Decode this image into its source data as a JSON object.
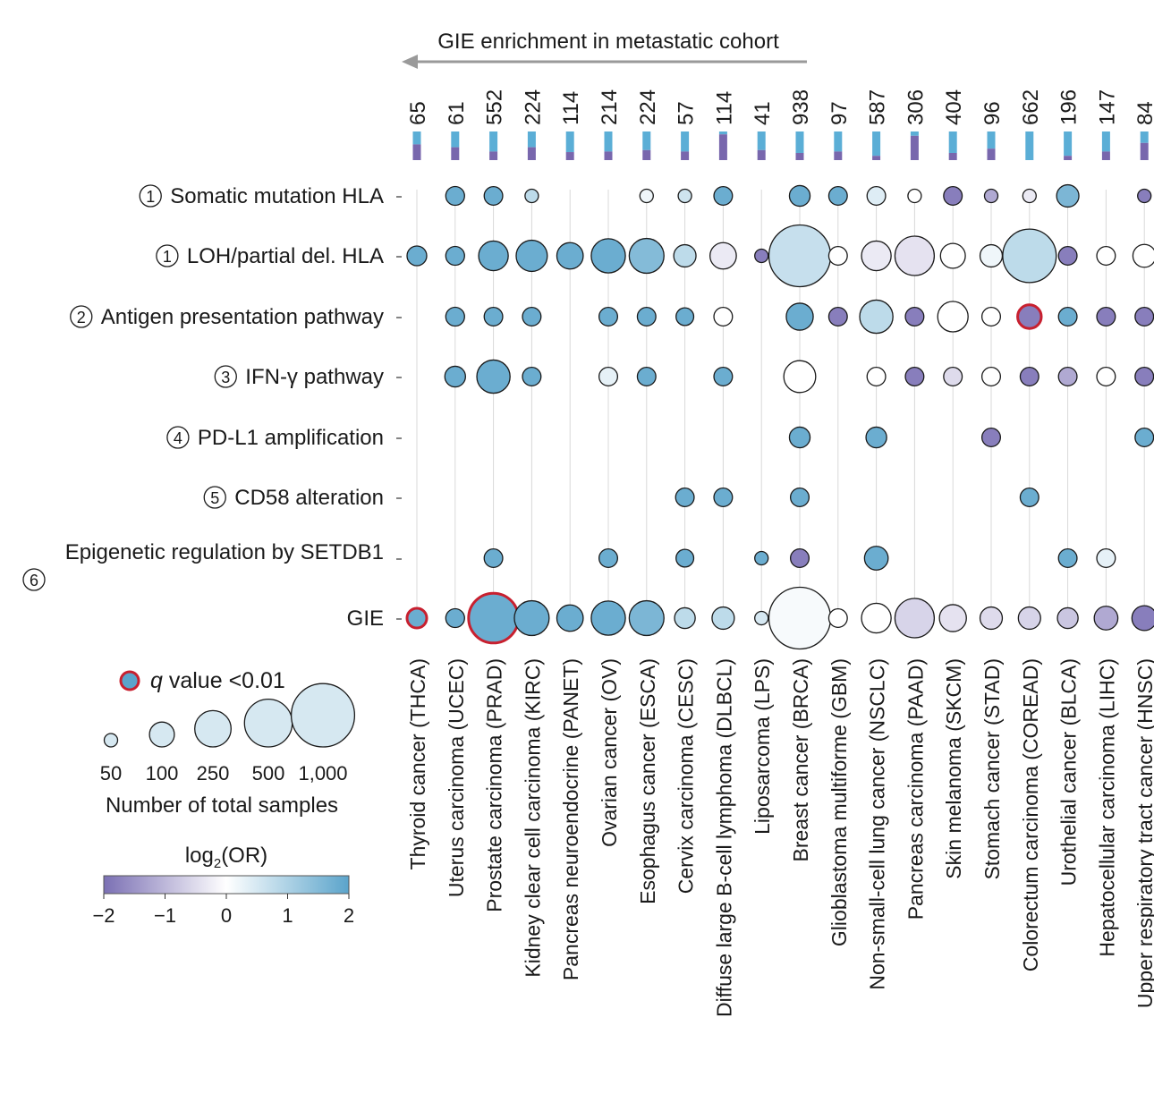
{
  "chart_data": {
    "type": "bubble-matrix",
    "arrow_label": "GIE enrichment in metastatic cohort",
    "cancers": [
      "Thyroid cancer (THCA)",
      "Uterus carcinoma (UCEC)",
      "Prostate carcinoma (PRAD)",
      "Kidney clear cell carcinoma (KIRC)",
      "Pancreas neuroendocrine (PANET)",
      "Ovarian cancer (OV)",
      "Esophagus cancer (ESCA)",
      "Cervix carcinoma (CESC)",
      "Diffuse large B-cell lymphoma (DLBCL)",
      "Liposarcoma (LPS)",
      "Breast cancer (BRCA)",
      "Glioblastoma multiforme (GBM)",
      "Non-small-cell lung cancer (NSCLC)",
      "Pancreas carcinoma (PAAD)",
      "Skin melanoma (SKCM)",
      "Stomach cancer (STAD)",
      "Colorectum carcinoma (COREAD)",
      "Urothelial cancer (BLCA)",
      "Hepatocellular carcinoma (LIHC)",
      "Upper respiratory tract cancer (HNSC)"
    ],
    "sample_counts": [
      "65",
      "61",
      "552",
      "224",
      "114",
      "214",
      "224",
      "57",
      "114",
      "41",
      "938",
      "97",
      "587",
      "306",
      "404",
      "96",
      "662",
      "196",
      "147",
      "84"
    ],
    "metastatic_fraction": [
      0.55,
      0.45,
      0.3,
      0.45,
      0.28,
      0.3,
      0.35,
      0.3,
      0.9,
      0.35,
      0.25,
      0.3,
      0.15,
      0.85,
      0.25,
      0.4,
      0.0,
      0.15,
      0.3,
      0.6
    ],
    "rows": [
      {
        "num": "1",
        "label": "Somatic mutation HLA"
      },
      {
        "num": "1",
        "label": "LOH/partial del. HLA"
      },
      {
        "num": "2",
        "label": "Antigen presentation pathway"
      },
      {
        "num": "3",
        "label": "IFN-γ pathway"
      },
      {
        "num": "4",
        "label": "PD-L1 amplification"
      },
      {
        "num": "5",
        "label": "CD58 alteration"
      },
      {
        "num": "6",
        "label": "Epigenetic regulation by SETDB1"
      },
      {
        "num": "",
        "label": "GIE"
      }
    ],
    "points": [
      {
        "row": 0,
        "col": 1,
        "n": 61,
        "log2or": 1.8
      },
      {
        "row": 0,
        "col": 2,
        "n": 60,
        "log2or": 1.8
      },
      {
        "row": 0,
        "col": 3,
        "n": 50,
        "log2or": 0.8
      },
      {
        "row": 0,
        "col": 6,
        "n": 50,
        "log2or": 0.2
      },
      {
        "row": 0,
        "col": 7,
        "n": 50,
        "log2or": 0.6
      },
      {
        "row": 0,
        "col": 8,
        "n": 60,
        "log2or": 1.8
      },
      {
        "row": 0,
        "col": 10,
        "n": 70,
        "log2or": 1.8
      },
      {
        "row": 0,
        "col": 11,
        "n": 60,
        "log2or": 1.8
      },
      {
        "row": 0,
        "col": 12,
        "n": 60,
        "log2or": 0.4
      },
      {
        "row": 0,
        "col": 13,
        "n": 50,
        "log2or": 0.0
      },
      {
        "row": 0,
        "col": 14,
        "n": 60,
        "log2or": -1.8
      },
      {
        "row": 0,
        "col": 15,
        "n": 50,
        "log2or": -1.2
      },
      {
        "row": 0,
        "col": 16,
        "n": 50,
        "log2or": -0.3
      },
      {
        "row": 0,
        "col": 17,
        "n": 80,
        "log2or": 1.6
      },
      {
        "row": 0,
        "col": 19,
        "n": 50,
        "log2or": -1.8
      },
      {
        "row": 1,
        "col": 0,
        "n": 65,
        "log2or": 1.8
      },
      {
        "row": 1,
        "col": 1,
        "n": 61,
        "log2or": 1.8
      },
      {
        "row": 1,
        "col": 2,
        "n": 150,
        "log2or": 1.8
      },
      {
        "row": 1,
        "col": 3,
        "n": 170,
        "log2or": 1.8
      },
      {
        "row": 1,
        "col": 4,
        "n": 114,
        "log2or": 1.8
      },
      {
        "row": 1,
        "col": 5,
        "n": 214,
        "log2or": 1.8
      },
      {
        "row": 1,
        "col": 6,
        "n": 224,
        "log2or": 1.5
      },
      {
        "row": 1,
        "col": 7,
        "n": 80,
        "log2or": 0.8
      },
      {
        "row": 1,
        "col": 8,
        "n": 114,
        "log2or": -0.3
      },
      {
        "row": 1,
        "col": 9,
        "n": 41,
        "log2or": -1.8
      },
      {
        "row": 1,
        "col": 10,
        "n": 938,
        "log2or": 0.7
      },
      {
        "row": 1,
        "col": 11,
        "n": 60,
        "log2or": 0.0
      },
      {
        "row": 1,
        "col": 12,
        "n": 150,
        "log2or": -0.3
      },
      {
        "row": 1,
        "col": 13,
        "n": 306,
        "log2or": -0.4
      },
      {
        "row": 1,
        "col": 14,
        "n": 100,
        "log2or": 0.0
      },
      {
        "row": 1,
        "col": 15,
        "n": 80,
        "log2or": 0.2
      },
      {
        "row": 1,
        "col": 16,
        "n": 662,
        "log2or": 0.8
      },
      {
        "row": 1,
        "col": 17,
        "n": 60,
        "log2or": -1.8
      },
      {
        "row": 1,
        "col": 18,
        "n": 60,
        "log2or": 0.0
      },
      {
        "row": 1,
        "col": 19,
        "n": 84,
        "log2or": 0.0
      },
      {
        "row": 2,
        "col": 1,
        "n": 61,
        "log2or": 1.8
      },
      {
        "row": 2,
        "col": 2,
        "n": 60,
        "log2or": 1.8
      },
      {
        "row": 2,
        "col": 3,
        "n": 60,
        "log2or": 1.8
      },
      {
        "row": 2,
        "col": 5,
        "n": 60,
        "log2or": 1.8
      },
      {
        "row": 2,
        "col": 6,
        "n": 60,
        "log2or": 1.8
      },
      {
        "row": 2,
        "col": 7,
        "n": 57,
        "log2or": 1.8
      },
      {
        "row": 2,
        "col": 8,
        "n": 60,
        "log2or": 0.0
      },
      {
        "row": 2,
        "col": 10,
        "n": 120,
        "log2or": 1.8
      },
      {
        "row": 2,
        "col": 11,
        "n": 60,
        "log2or": -1.8
      },
      {
        "row": 2,
        "col": 12,
        "n": 200,
        "log2or": 0.8
      },
      {
        "row": 2,
        "col": 13,
        "n": 60,
        "log2or": -1.8
      },
      {
        "row": 2,
        "col": 14,
        "n": 160,
        "log2or": 0.0
      },
      {
        "row": 2,
        "col": 15,
        "n": 60,
        "log2or": 0.0
      },
      {
        "row": 2,
        "col": 16,
        "n": 90,
        "log2or": -1.8,
        "sig": true
      },
      {
        "row": 2,
        "col": 17,
        "n": 60,
        "log2or": 1.8
      },
      {
        "row": 2,
        "col": 18,
        "n": 60,
        "log2or": -1.8
      },
      {
        "row": 2,
        "col": 19,
        "n": 60,
        "log2or": -1.8
      },
      {
        "row": 3,
        "col": 1,
        "n": 70,
        "log2or": 1.8
      },
      {
        "row": 3,
        "col": 2,
        "n": 200,
        "log2or": 1.8
      },
      {
        "row": 3,
        "col": 3,
        "n": 60,
        "log2or": 1.8
      },
      {
        "row": 3,
        "col": 5,
        "n": 60,
        "log2or": 0.3
      },
      {
        "row": 3,
        "col": 6,
        "n": 60,
        "log2or": 1.8
      },
      {
        "row": 3,
        "col": 8,
        "n": 60,
        "log2or": 1.8
      },
      {
        "row": 3,
        "col": 10,
        "n": 180,
        "log2or": 0.0
      },
      {
        "row": 3,
        "col": 12,
        "n": 60,
        "log2or": 0.0
      },
      {
        "row": 3,
        "col": 13,
        "n": 60,
        "log2or": -1.8
      },
      {
        "row": 3,
        "col": 14,
        "n": 60,
        "log2or": -0.5
      },
      {
        "row": 3,
        "col": 15,
        "n": 60,
        "log2or": 0.0
      },
      {
        "row": 3,
        "col": 16,
        "n": 60,
        "log2or": -1.8
      },
      {
        "row": 3,
        "col": 17,
        "n": 60,
        "log2or": -1.2
      },
      {
        "row": 3,
        "col": 18,
        "n": 60,
        "log2or": 0.0
      },
      {
        "row": 3,
        "col": 19,
        "n": 60,
        "log2or": -1.8
      },
      {
        "row": 4,
        "col": 10,
        "n": 70,
        "log2or": 1.8
      },
      {
        "row": 4,
        "col": 12,
        "n": 70,
        "log2or": 1.8
      },
      {
        "row": 4,
        "col": 15,
        "n": 60,
        "log2or": -1.8
      },
      {
        "row": 4,
        "col": 19,
        "n": 60,
        "log2or": 1.8
      },
      {
        "row": 5,
        "col": 7,
        "n": 60,
        "log2or": 1.8
      },
      {
        "row": 5,
        "col": 8,
        "n": 60,
        "log2or": 1.8
      },
      {
        "row": 5,
        "col": 10,
        "n": 60,
        "log2or": 1.8
      },
      {
        "row": 5,
        "col": 16,
        "n": 60,
        "log2or": 1.8
      },
      {
        "row": 6,
        "col": 2,
        "n": 60,
        "log2or": 1.8
      },
      {
        "row": 6,
        "col": 5,
        "n": 60,
        "log2or": 1.8
      },
      {
        "row": 6,
        "col": 7,
        "n": 57,
        "log2or": 1.8
      },
      {
        "row": 6,
        "col": 9,
        "n": 41,
        "log2or": 1.8
      },
      {
        "row": 6,
        "col": 10,
        "n": 60,
        "log2or": -1.8
      },
      {
        "row": 6,
        "col": 12,
        "n": 90,
        "log2or": 1.8
      },
      {
        "row": 6,
        "col": 17,
        "n": 60,
        "log2or": 1.8
      },
      {
        "row": 6,
        "col": 18,
        "n": 60,
        "log2or": 0.3
      },
      {
        "row": 7,
        "col": 0,
        "n": 65,
        "log2or": 1.8,
        "sig": true
      },
      {
        "row": 7,
        "col": 1,
        "n": 61,
        "log2or": 1.8
      },
      {
        "row": 7,
        "col": 2,
        "n": 552,
        "log2or": 1.8,
        "sig": true
      },
      {
        "row": 7,
        "col": 3,
        "n": 224,
        "log2or": 1.8
      },
      {
        "row": 7,
        "col": 4,
        "n": 114,
        "log2or": 1.8
      },
      {
        "row": 7,
        "col": 5,
        "n": 214,
        "log2or": 1.8
      },
      {
        "row": 7,
        "col": 6,
        "n": 224,
        "log2or": 1.6
      },
      {
        "row": 7,
        "col": 7,
        "n": 70,
        "log2or": 0.8
      },
      {
        "row": 7,
        "col": 8,
        "n": 80,
        "log2or": 0.8
      },
      {
        "row": 7,
        "col": 9,
        "n": 41,
        "log2or": 0.5
      },
      {
        "row": 7,
        "col": 10,
        "n": 938,
        "log2or": 0.1
      },
      {
        "row": 7,
        "col": 11,
        "n": 60,
        "log2or": 0.0
      },
      {
        "row": 7,
        "col": 12,
        "n": 150,
        "log2or": 0.0
      },
      {
        "row": 7,
        "col": 13,
        "n": 306,
        "log2or": -0.6
      },
      {
        "row": 7,
        "col": 14,
        "n": 120,
        "log2or": -0.4
      },
      {
        "row": 7,
        "col": 15,
        "n": 80,
        "log2or": -0.5
      },
      {
        "row": 7,
        "col": 16,
        "n": 80,
        "log2or": -0.6
      },
      {
        "row": 7,
        "col": 17,
        "n": 70,
        "log2or": -0.8
      },
      {
        "row": 7,
        "col": 18,
        "n": 90,
        "log2or": -1.2
      },
      {
        "row": 7,
        "col": 19,
        "n": 100,
        "log2or": -1.8
      }
    ],
    "legend": {
      "q_label": "q value <0.01",
      "size_values": [
        50,
        100,
        250,
        500,
        1000
      ],
      "size_labels": [
        "50",
        "100",
        "250",
        "500",
        "1,000"
      ],
      "size_title": "Number of total samples",
      "color_title_base": "log",
      "color_title_sub": "2",
      "color_title_rest": "(OR)",
      "color_ticks": [
        "−2",
        "−1",
        "0",
        "1",
        "2"
      ],
      "color_range": [
        -2,
        2
      ]
    },
    "colors": {
      "low": "#7b70b4",
      "mid": "#ffffff",
      "high": "#5ba4cb",
      "sig_stroke": "#c8202f",
      "bar_top": "#5baed6",
      "bar_bottom": "#7867ad",
      "grid": "#d9d9d9",
      "arrow": "#9a9a9a"
    }
  }
}
